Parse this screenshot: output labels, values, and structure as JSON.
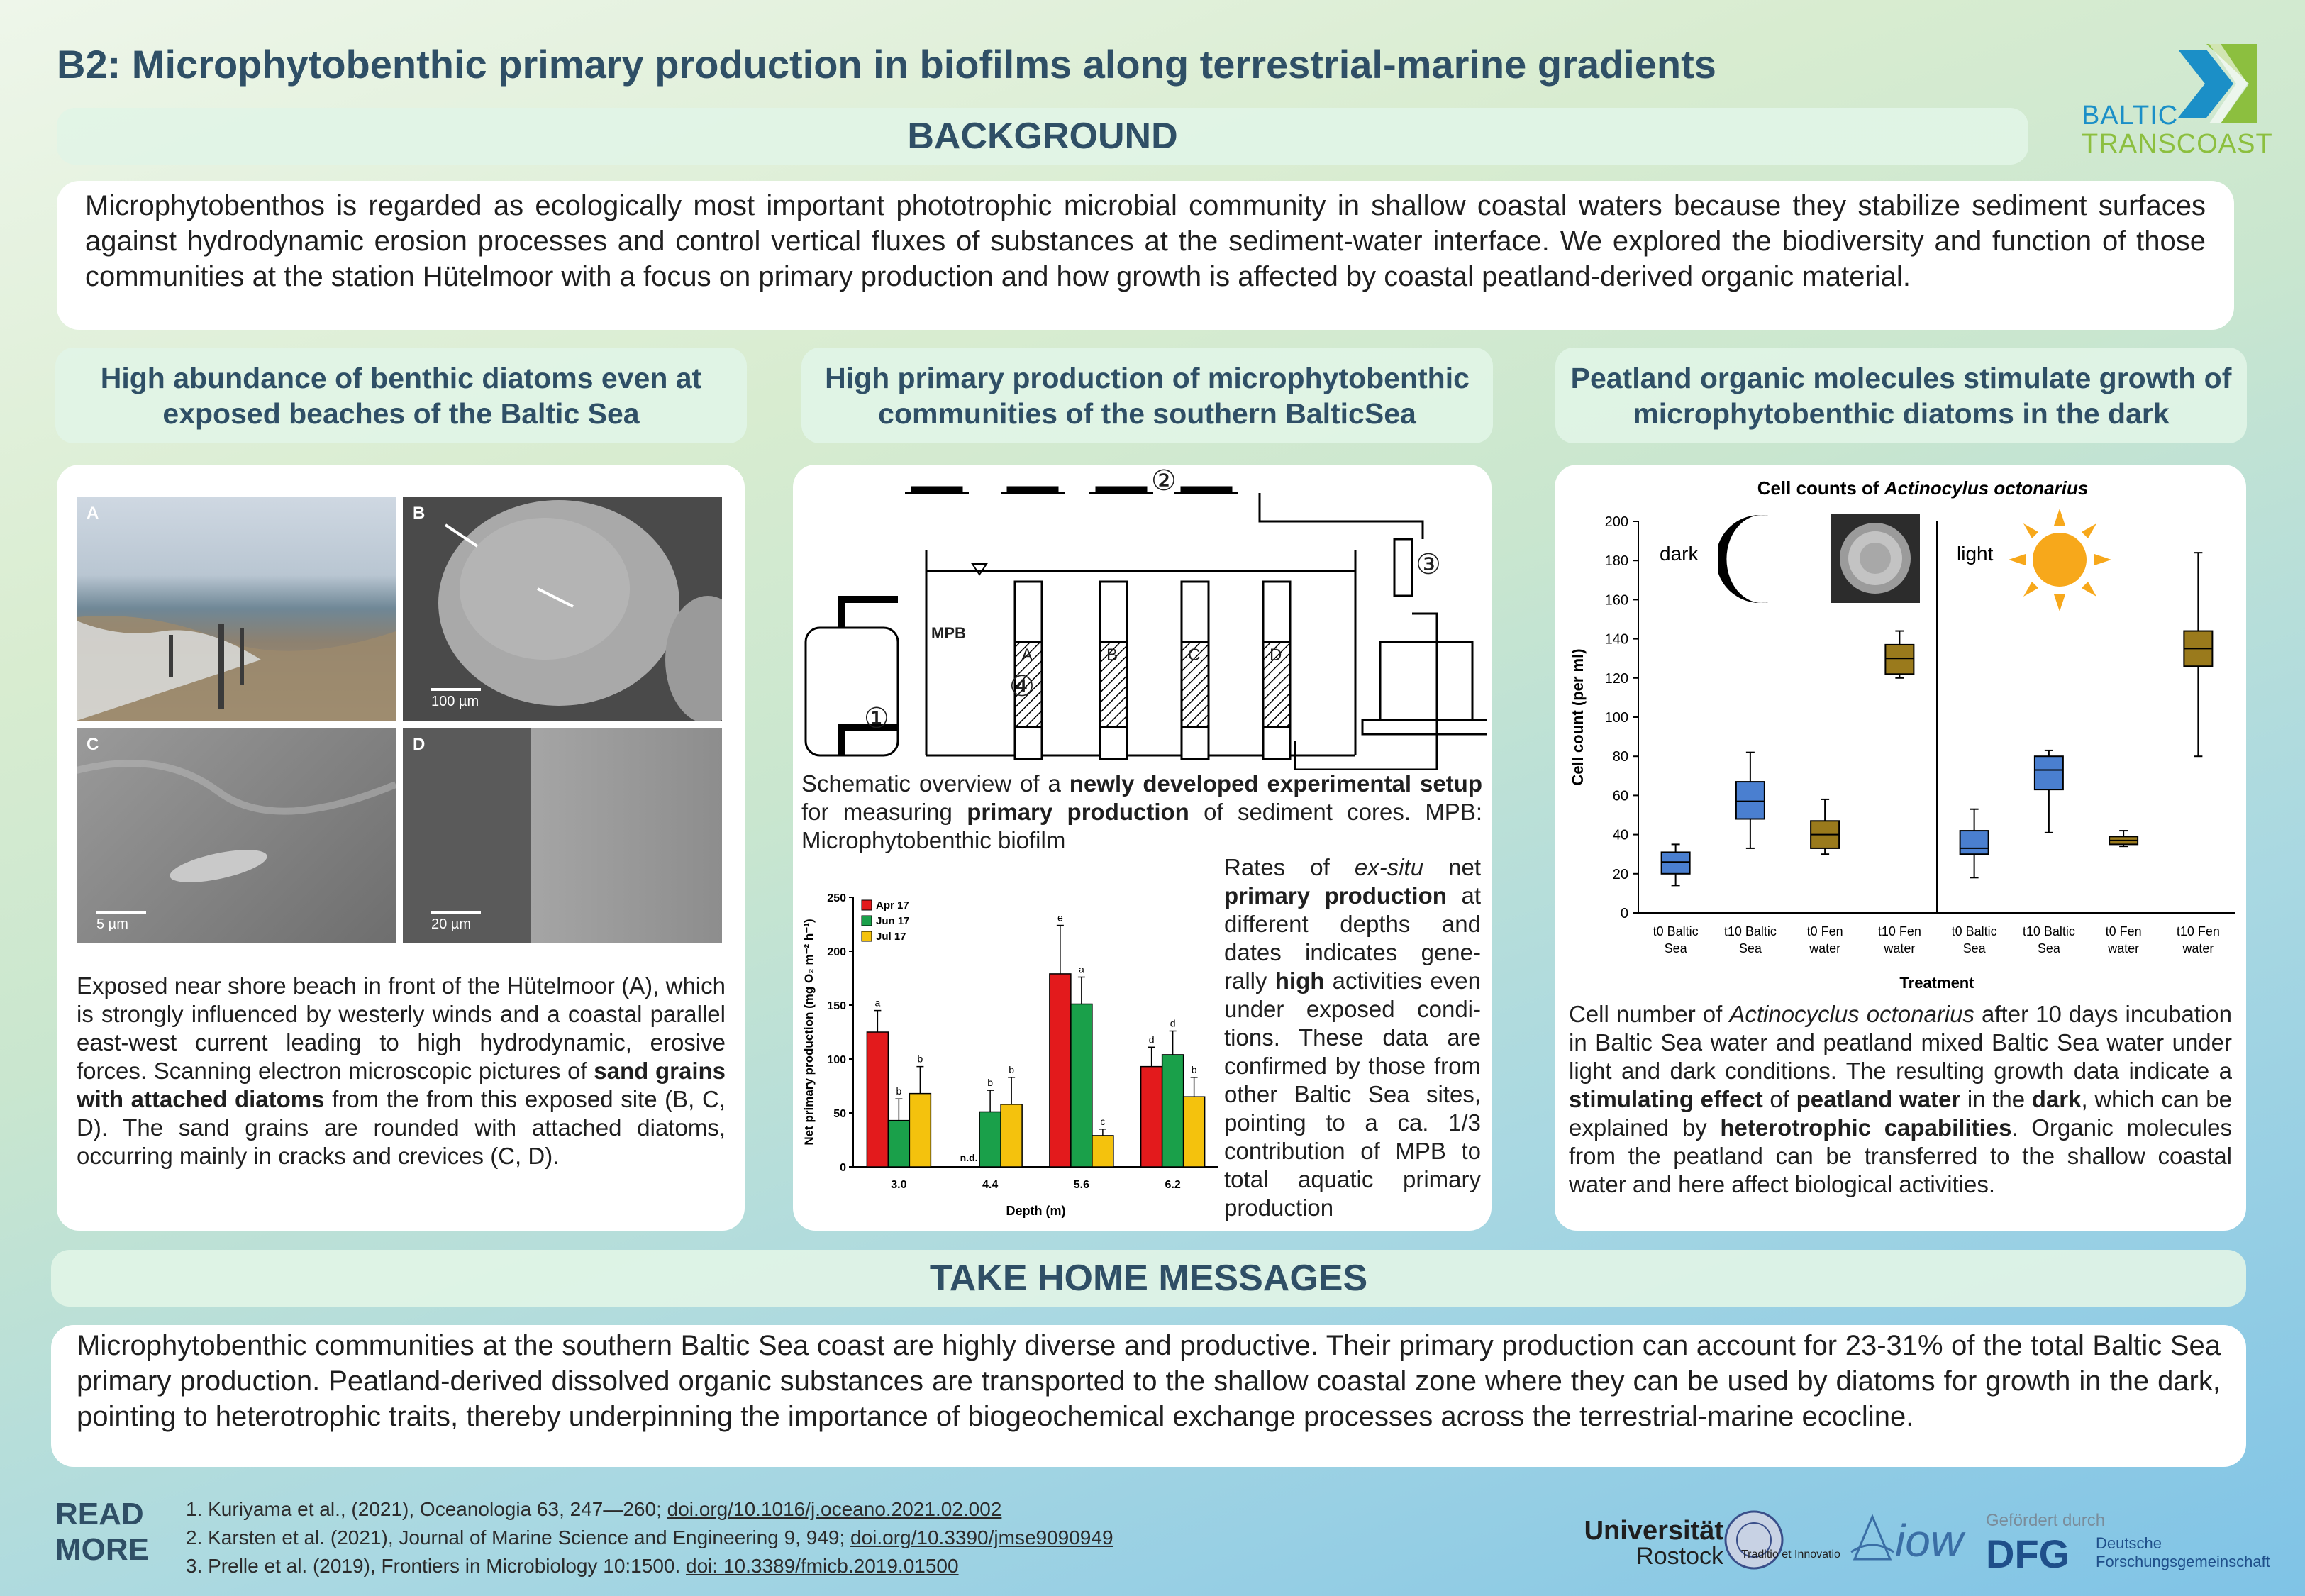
{
  "header": {
    "title": "B2: Microphytobenthic primary production in biofilms along terrestrial-marine gradients",
    "logo_line1": "BALTIC",
    "logo_line2": "TRANSCOAST"
  },
  "background": {
    "heading": "BACKGROUND",
    "text": "Microphytobenthos is regarded as ecologically most important phototrophic microbial community in shallow coastal waters because they stabilize sediment surfaces against hydrodynamic erosion processes and control vertical fluxes of substances at the sediment-water interface. We explored the biodiversity and function of those communities at the station Hütelmoor with a focus on primary production and how growth is affected by coastal peatland-derived organic material."
  },
  "columns": {
    "col1_heading": "High abundance of benthic diatoms even at exposed beaches of the Baltic Sea",
    "col2_heading": "High primary production of microphytobenthic communities of the southern BalticSea",
    "col3_heading": "Peatland organic molecules stimulate growth of microphytobenthic diatoms in the dark"
  },
  "panel1": {
    "photo_labels": [
      "A",
      "B",
      "C",
      "D"
    ],
    "scale_labels": [
      "100 µm",
      "5 µm",
      "20 µm"
    ],
    "caption_1": "Exposed near shore beach in front of the Hütelmoor (A), which is strongly influenced by westerly winds and a coastal parallel east-west current leading to high hydrodynamic, erosive forces. Scanning electron microscopic pictures of ",
    "caption_bold": "sand grains with attached diatoms",
    "caption_2": " from the from this exposed site (B, C, D). The sand grains are rounded with attached diatoms, occurring mainly in cracks and crevices (C, D)."
  },
  "panel2": {
    "setup_labels": [
      "MPB",
      "A",
      "B",
      "C",
      "D",
      "①",
      "②",
      "③",
      "④"
    ],
    "caption_a": "Schematic overview of a ",
    "caption_b1": "newly developed experimental setup",
    "caption_c": " for measuring ",
    "caption_b2": "primary production",
    "caption_d": " of sediment cores. MPB: Microphytobenthic biofilm",
    "rates_1": "Rates of ",
    "rates_it": "ex-situ",
    "rates_2": " net ",
    "rates_b1": "primary production",
    "rates_3": " at different depths and dates indicates gene-rally ",
    "rates_b2": "high",
    "rates_4": " activities even under exposed condi-tions. These data are confirmed by those from other Baltic Sea sites, pointing to a ca. 1/3 contribution of MPB to total aquatic primary production"
  },
  "panel3": {
    "caption_1": "Cell number of ",
    "caption_it": "Actinocyclus octonarius",
    "caption_2": " after 10 days incubation in Baltic Sea water and peatland mixed Baltic Sea water under light and dark conditions. The resulting growth data indicate a ",
    "caption_b1": "stimulating effect",
    "caption_3": " of ",
    "caption_b2": "peatland water",
    "caption_4": " in the ",
    "caption_b3": "dark",
    "caption_5": ", which can be explained by ",
    "caption_b4": "heterotrophic capabilities",
    "caption_6": ". Organic molecules from the peatland can be transferred to the shallow coastal water and here affect biological activities."
  },
  "chart_data": [
    {
      "type": "bar",
      "title": "",
      "xlabel": "Depth (m)",
      "ylabel": "Net primary production (mg O₂ m⁻² h⁻¹)",
      "categories": [
        "3.0",
        "4.4",
        "5.6",
        "6.2"
      ],
      "ylim": [
        0,
        250
      ],
      "yticks": [
        0,
        50,
        100,
        150,
        200,
        250
      ],
      "legend_position": "top-left",
      "series": [
        {
          "name": "Apr 17",
          "color": "#e31a1c",
          "values": [
            125,
            null,
            179,
            93
          ],
          "errors": [
            20,
            null,
            45,
            18
          ],
          "letters": [
            "a",
            "",
            "e",
            "d"
          ]
        },
        {
          "name": "Jun 17",
          "color": "#1aa04a",
          "values": [
            43,
            51,
            151,
            104
          ],
          "errors": [
            20,
            20,
            25,
            22
          ],
          "letters": [
            "b",
            "b",
            "a",
            "d"
          ]
        },
        {
          "name": "Jul 17",
          "color": "#f4c20d",
          "values": [
            68,
            58,
            29,
            65
          ],
          "errors": [
            25,
            25,
            6,
            18
          ],
          "letters": [
            "b",
            "b",
            "c",
            "b"
          ]
        }
      ],
      "annotations": [
        "n.d."
      ]
    },
    {
      "type": "box",
      "title": "Cell counts of Actinocylus octonarius",
      "title_prefix": "Cell counts of ",
      "title_italic": "Actinocylus octonarius",
      "xlabel": "Treatment",
      "ylabel": "Cell count (per ml)",
      "ylim": [
        0,
        200
      ],
      "yticks": [
        0,
        20,
        40,
        60,
        80,
        100,
        120,
        140,
        160,
        180,
        200
      ],
      "panel_labels": [
        "dark",
        "light"
      ],
      "categories": [
        "t0 Baltic Sea",
        "t10 Baltic Sea",
        "t0 Fen water",
        "t10 Fen water",
        "t0 Baltic Sea",
        "t10 Baltic Sea",
        "t0 Fen water",
        "t10 Fen water"
      ],
      "category_line1": [
        "t0 Baltic",
        "t10 Baltic",
        "t0 Fen",
        "t10 Fen",
        "t0 Baltic",
        "t10 Baltic",
        "t0 Fen",
        "t10 Fen"
      ],
      "category_line2": [
        "Sea",
        "Sea",
        "water",
        "water",
        "Sea",
        "Sea",
        "water",
        "water"
      ],
      "boxes": [
        {
          "min": 14,
          "q1": 20,
          "median": 26,
          "q3": 31,
          "max": 35,
          "color": "#4a7fd0"
        },
        {
          "min": 33,
          "q1": 48,
          "median": 57,
          "q3": 67,
          "max": 82,
          "color": "#4a7fd0"
        },
        {
          "min": 30,
          "q1": 33,
          "median": 40,
          "q3": 47,
          "max": 58,
          "color": "#9a7a1c"
        },
        {
          "min": 120,
          "q1": 122,
          "median": 130,
          "q3": 137,
          "max": 144,
          "color": "#9a7a1c"
        },
        {
          "min": 18,
          "q1": 30,
          "median": 33,
          "q3": 42,
          "max": 53,
          "color": "#4a7fd0"
        },
        {
          "min": 41,
          "q1": 63,
          "median": 73,
          "q3": 80,
          "max": 83,
          "color": "#4a7fd0"
        },
        {
          "min": 34,
          "q1": 35,
          "median": 37,
          "q3": 39,
          "max": 42,
          "color": "#9a7a1c"
        },
        {
          "min": 80,
          "q1": 126,
          "median": 135,
          "q3": 144,
          "max": 184,
          "color": "#9a7a1c"
        }
      ]
    }
  ],
  "take_home": {
    "heading": "TAKE HOME MESSAGES",
    "text": "Microphytobenthic communities at the southern Baltic Sea coast are highly diverse and productive. Their primary production can account for 23-31% of the total Baltic Sea primary production. Peatland-derived dissolved organic substances are transported to the shallow coastal zone where they can be used by diatoms for growth in the dark, pointing to heterotrophic traits, thereby underpinning the importance of biogeochemical exchange processes across the terrestrial-marine ecocline."
  },
  "footer": {
    "read": "READ",
    "more": "MORE",
    "refs": [
      {
        "text": "1. Kuriyama et al., (2021), Oceanologia 63, 247—260; ",
        "link": "doi.org/10.1016/j.oceano.2021.02.002"
      },
      {
        "text": "2. Karsten et al. (2021), Journal of Marine Science and Engineering 9, 949; ",
        "link": "doi.org/10.3390/jmse9090949"
      },
      {
        "text": "3. Prelle et al. (2019), Frontiers in Microbiology 10:1500. ",
        "link": "doi: 10.3389/fmicb.2019.01500"
      }
    ],
    "uni1": "Universität",
    "uni2": "Rostock",
    "uni_motto": "Traditio et Innovatio",
    "iow": "iow",
    "funded": "Gefördert durch",
    "dfg": "DFG",
    "dfg1": "Deutsche",
    "dfg2": "Forschungsgemeinschaft"
  }
}
